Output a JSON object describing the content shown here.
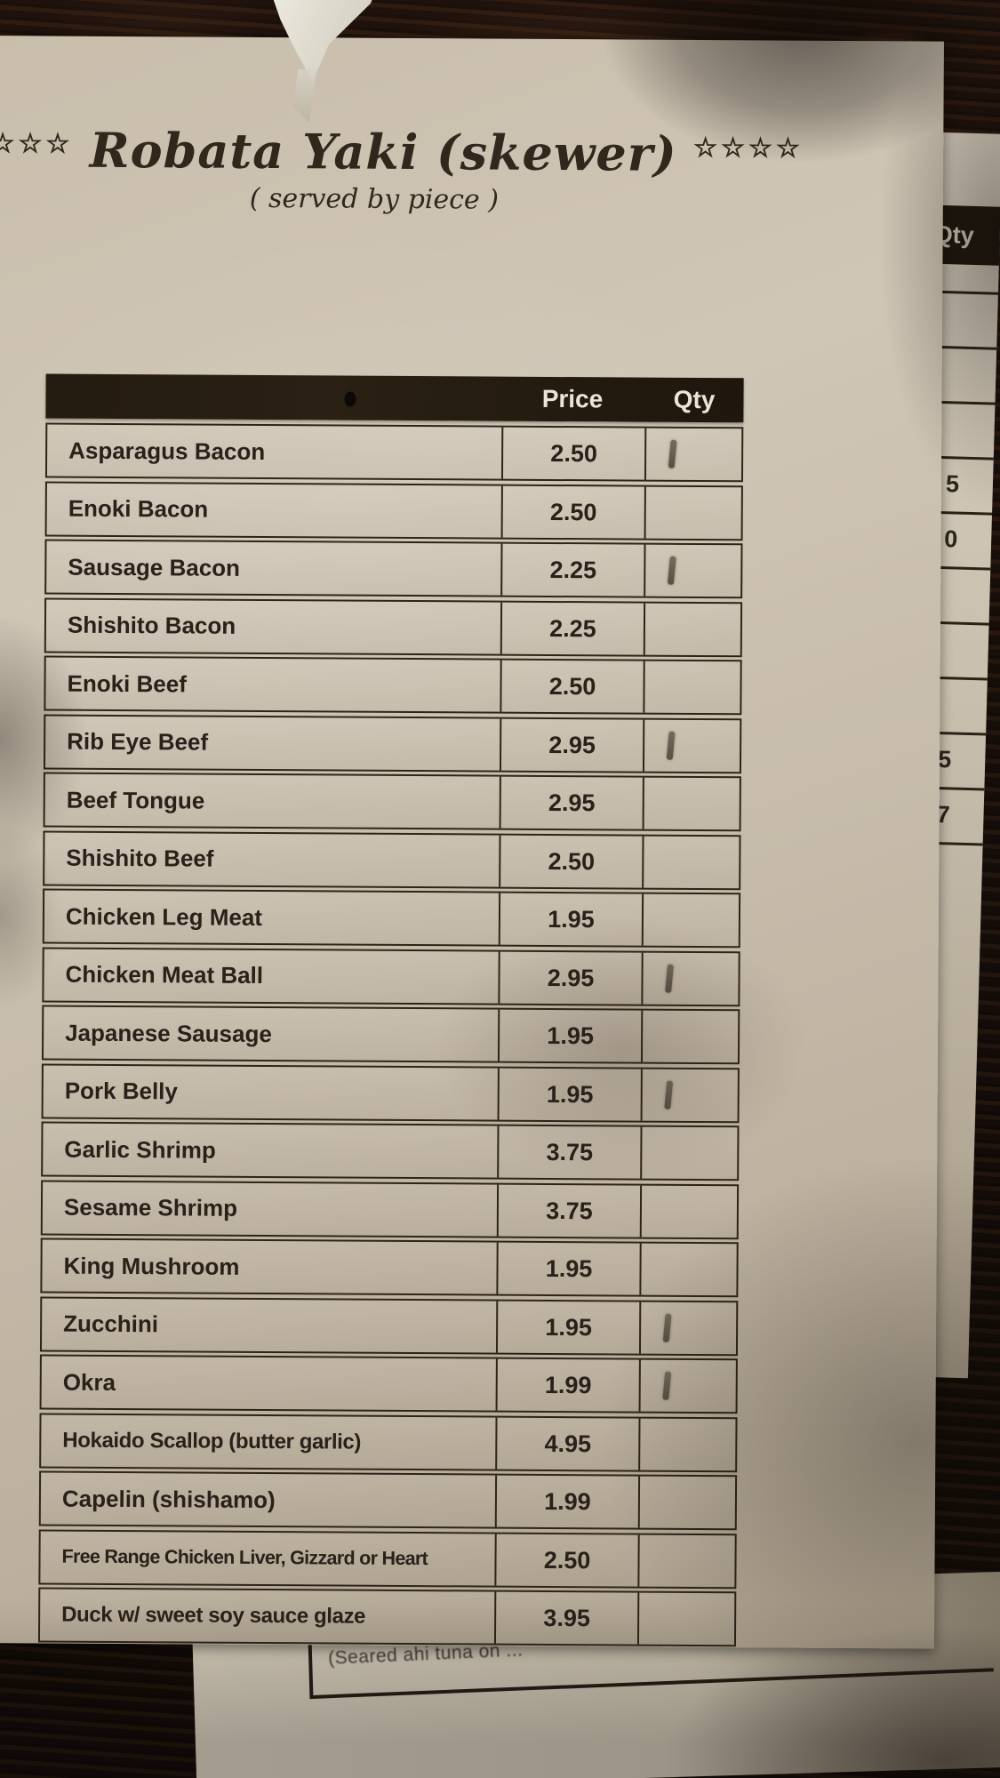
{
  "scene": {
    "description": "Photograph of a paper robata yaki order menu on a dark wooden table",
    "bottom_sheet_partial_text": "(Seared ahi tuna on ...",
    "side_sheet": {
      "qty_header": "Qty",
      "partial_cells": [
        "",
        "",
        "",
        "5",
        "0",
        "",
        "",
        "",
        "5",
        "7",
        ""
      ]
    }
  },
  "menu": {
    "stars_left": "☆☆☆☆",
    "stars_right": "☆☆☆☆",
    "title": "Robata Yaki (skewer)",
    "subtitle": "( served by piece )",
    "columns": {
      "price": "Price",
      "qty": "Qty"
    },
    "items": [
      {
        "name": "Asparagus Bacon",
        "price": "2.50",
        "qty_marks": 1
      },
      {
        "name": "Enoki Bacon",
        "price": "2.50",
        "qty_marks": 0
      },
      {
        "name": "Sausage Bacon",
        "price": "2.25",
        "qty_marks": 1
      },
      {
        "name": "Shishito Bacon",
        "price": "2.25",
        "qty_marks": 0
      },
      {
        "name": "Enoki Beef",
        "price": "2.50",
        "qty_marks": 0
      },
      {
        "name": "Rib Eye Beef",
        "price": "2.95",
        "qty_marks": 1
      },
      {
        "name": "Beef Tongue",
        "price": "2.95",
        "qty_marks": 0
      },
      {
        "name": "Shishito Beef",
        "price": "2.50",
        "qty_marks": 0
      },
      {
        "name": "Chicken Leg Meat",
        "price": "1.95",
        "qty_marks": 0
      },
      {
        "name": "Chicken Meat Ball",
        "price": "2.95",
        "qty_marks": 1
      },
      {
        "name": "Japanese Sausage",
        "price": "1.95",
        "qty_marks": 0
      },
      {
        "name": "Pork Belly",
        "price": "1.95",
        "qty_marks": 1
      },
      {
        "name": "Garlic Shrimp",
        "price": "3.75",
        "qty_marks": 0
      },
      {
        "name": "Sesame Shrimp",
        "price": "3.75",
        "qty_marks": 0
      },
      {
        "name": "King Mushroom",
        "price": "1.95",
        "qty_marks": 0
      },
      {
        "name": "Zucchini",
        "price": "1.95",
        "qty_marks": 1
      },
      {
        "name": "Okra",
        "price": "1.99",
        "qty_marks": 1
      },
      {
        "name": "Hokaido Scallop (butter garlic)",
        "price": "4.95",
        "qty_marks": 0
      },
      {
        "name": "Capelin (shishamo)",
        "price": "1.99",
        "qty_marks": 0
      },
      {
        "name": "Free Range Chicken Liver, Gizzard or Heart",
        "price": "2.50",
        "qty_marks": 0
      },
      {
        "name": "Duck w/ sweet soy sauce glaze",
        "price": "3.95",
        "qty_marks": 0
      }
    ]
  },
  "colors": {
    "paper": "#cbc0af",
    "wood": "#1d130d",
    "ink": "#2b211a",
    "header_bar": "#241b11",
    "header_text": "#ece5d6",
    "pen_mark": "#5d5448"
  }
}
